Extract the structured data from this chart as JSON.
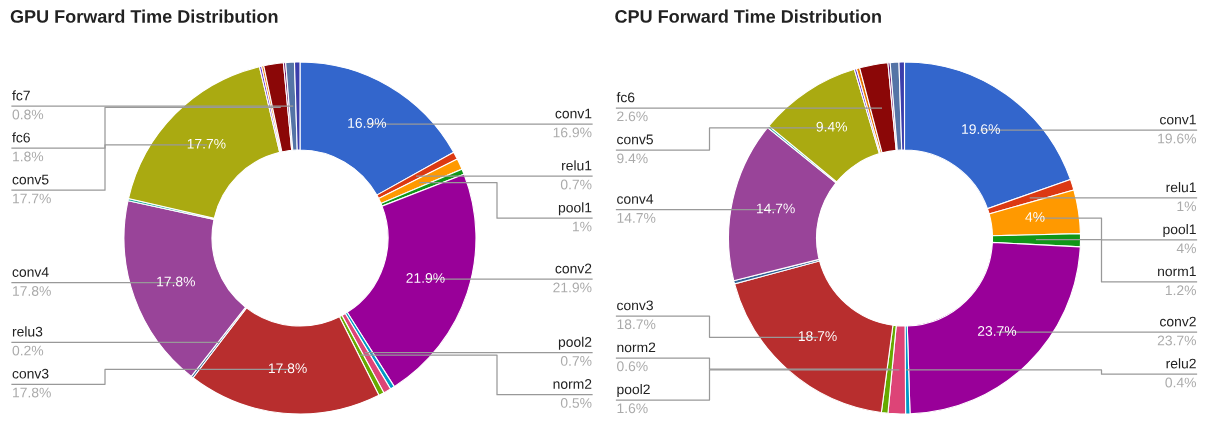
{
  "chart_data": [
    {
      "type": "donut",
      "title": "GPU Forward Time Distribution",
      "categories": [
        "conv1",
        "relu1",
        "pool1",
        null,
        "conv2",
        null,
        "pool2",
        "norm2",
        "conv3",
        "relu3",
        "conv4",
        null,
        "conv5",
        null,
        null,
        "fc6",
        null,
        "fc7",
        null
      ],
      "values": [
        16.9,
        0.7,
        1,
        0.5,
        21.9,
        0.4,
        0.7,
        0.5,
        17.8,
        0.2,
        17.8,
        0.2,
        17.7,
        0.2,
        0.2,
        1.8,
        0.2,
        0.8,
        0.5
      ],
      "value_labels": [
        "16.9%",
        "0.7%",
        "1%",
        null,
        "21.9%",
        null,
        "0.7%",
        "0.5%",
        "17.8%",
        "0.2%",
        "17.8%",
        null,
        "17.7%",
        null,
        null,
        "1.8%",
        null,
        "0.8%",
        null
      ],
      "colors": [
        "#3366cc",
        "#dc3912",
        "#ff9900",
        "#109618",
        "#990099",
        "#0099c6",
        "#dd4477",
        "#66aa00",
        "#b82e2e",
        "#316395",
        "#994499",
        "#22aa99",
        "#aaaa11",
        "#6633cc",
        "#e67300",
        "#8b0707",
        "#651067",
        "#5574a6",
        "#3b3eac"
      ]
    },
    {
      "type": "donut",
      "title": "CPU Forward Time Distribution",
      "categories": [
        "conv1",
        "relu1",
        "pool1",
        "norm1",
        "conv2",
        "relu2",
        "pool2",
        "norm2",
        "conv3",
        null,
        "conv4",
        null,
        "conv5",
        null,
        null,
        "fc6",
        null,
        null,
        null
      ],
      "values": [
        19.6,
        1,
        4,
        1.2,
        23.7,
        0.4,
        1.6,
        0.6,
        18.7,
        0.3,
        14.7,
        0.2,
        9.4,
        0.2,
        0.3,
        2.6,
        0.2,
        0.8,
        0.5
      ],
      "value_labels": [
        "19.6%",
        "1%",
        "4%",
        "1.2%",
        "23.7%",
        "0.4%",
        "1.6%",
        "0.6%",
        "18.7%",
        null,
        "14.7%",
        null,
        "9.4%",
        null,
        null,
        "2.6%",
        null,
        null,
        null
      ],
      "colors": [
        "#3366cc",
        "#dc3912",
        "#ff9900",
        "#109618",
        "#990099",
        "#0099c6",
        "#dd4477",
        "#66aa00",
        "#b82e2e",
        "#316395",
        "#994499",
        "#22aa99",
        "#aaaa11",
        "#6633cc",
        "#e67300",
        "#8b0707",
        "#651067",
        "#5574a6",
        "#3b3eac"
      ]
    }
  ]
}
